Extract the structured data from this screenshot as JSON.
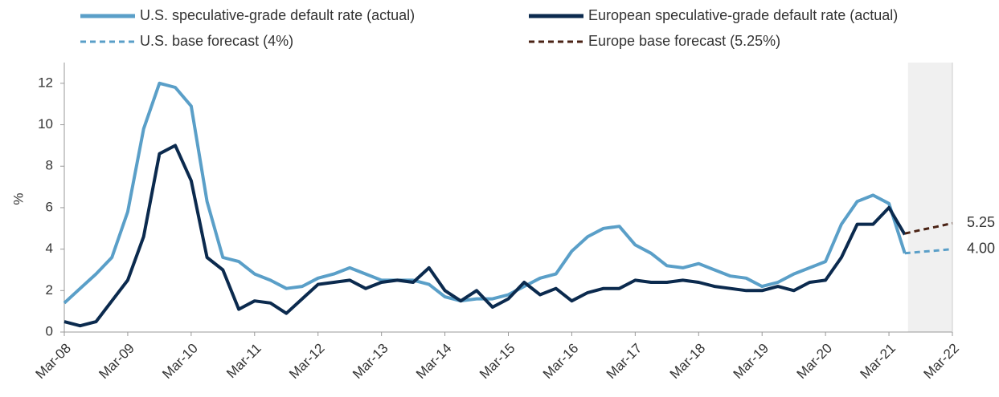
{
  "chart_data": {
    "type": "line",
    "y_label": "%",
    "categories": [
      "Mar-08",
      null,
      null,
      null,
      "Mar-09",
      null,
      null,
      null,
      "Mar-10",
      null,
      null,
      null,
      "Mar-11",
      null,
      null,
      null,
      "Mar-12",
      null,
      null,
      null,
      "Mar-13",
      null,
      null,
      null,
      "Mar-14",
      null,
      null,
      null,
      "Mar-15",
      null,
      null,
      null,
      "Mar-16",
      null,
      null,
      null,
      "Mar-17",
      null,
      null,
      null,
      "Mar-18",
      null,
      null,
      null,
      "Mar-19",
      null,
      null,
      null,
      "Mar-20",
      null,
      null,
      null,
      "Mar-21",
      null,
      null,
      null,
      "Mar-22"
    ],
    "ylim": [
      0,
      13
    ],
    "yticks": [
      0,
      2,
      4,
      6,
      8,
      10,
      12
    ],
    "series": [
      {
        "name": "U.S. speculative-grade default rate (actual)",
        "color": "#5a9fc8",
        "dash": false,
        "values": [
          1.4,
          2.1,
          2.8,
          3.6,
          5.8,
          9.8,
          12.0,
          11.8,
          10.9,
          6.3,
          3.6,
          3.4,
          2.8,
          2.5,
          2.1,
          2.2,
          2.6,
          2.8,
          3.1,
          2.8,
          2.5,
          2.5,
          2.5,
          2.3,
          1.7,
          1.5,
          1.6,
          1.6,
          1.8,
          2.2,
          2.6,
          2.8,
          3.9,
          4.6,
          5.0,
          5.1,
          4.2,
          3.8,
          3.2,
          3.1,
          3.3,
          3.0,
          2.7,
          2.6,
          2.2,
          2.4,
          2.8,
          3.1,
          3.4,
          5.2,
          6.3,
          6.6,
          6.2,
          3.8,
          null,
          null,
          null
        ]
      },
      {
        "name": "European speculative-grade default rate (actual)",
        "color": "#0b2a4e",
        "dash": false,
        "values": [
          0.5,
          0.3,
          0.5,
          1.5,
          2.5,
          4.6,
          8.6,
          9.0,
          7.3,
          3.6,
          3.0,
          1.1,
          1.5,
          1.4,
          0.9,
          1.6,
          2.3,
          2.4,
          2.5,
          2.1,
          2.4,
          2.5,
          2.4,
          3.1,
          2.0,
          1.5,
          2.0,
          1.2,
          1.6,
          2.4,
          1.8,
          2.1,
          1.5,
          1.9,
          2.1,
          2.1,
          2.5,
          2.4,
          2.4,
          2.5,
          2.4,
          2.2,
          2.1,
          2.0,
          2.0,
          2.2,
          2.0,
          2.4,
          2.5,
          3.6,
          5.2,
          5.2,
          6.0,
          4.7,
          null,
          null,
          null
        ]
      },
      {
        "name": "U.S. base forecast (4%)",
        "color": "#5a9fc8",
        "dash": true,
        "values": [
          null,
          null,
          null,
          null,
          null,
          null,
          null,
          null,
          null,
          null,
          null,
          null,
          null,
          null,
          null,
          null,
          null,
          null,
          null,
          null,
          null,
          null,
          null,
          null,
          null,
          null,
          null,
          null,
          null,
          null,
          null,
          null,
          null,
          null,
          null,
          null,
          null,
          null,
          null,
          null,
          null,
          null,
          null,
          null,
          null,
          null,
          null,
          null,
          null,
          null,
          null,
          null,
          null,
          3.8,
          3.87,
          3.93,
          4.0
        ],
        "value_labels": [
          null,
          null,
          null,
          null,
          null,
          null,
          null,
          null,
          null,
          null,
          null,
          null,
          null,
          null,
          null,
          null,
          null,
          null,
          null,
          null,
          null,
          null,
          null,
          null,
          null,
          null,
          null,
          null,
          null,
          null,
          null,
          null,
          null,
          null,
          null,
          null,
          null,
          null,
          null,
          null,
          null,
          null,
          null,
          null,
          null,
          null,
          null,
          null,
          null,
          null,
          null,
          null,
          null,
          null,
          null,
          null,
          "4.00"
        ]
      },
      {
        "name": "Europe base forecast (5.25%)",
        "color": "#4a2214",
        "dash": true,
        "values": [
          null,
          null,
          null,
          null,
          null,
          null,
          null,
          null,
          null,
          null,
          null,
          null,
          null,
          null,
          null,
          null,
          null,
          null,
          null,
          null,
          null,
          null,
          null,
          null,
          null,
          null,
          null,
          null,
          null,
          null,
          null,
          null,
          null,
          null,
          null,
          null,
          null,
          null,
          null,
          null,
          null,
          null,
          null,
          null,
          null,
          null,
          null,
          null,
          null,
          null,
          null,
          null,
          null,
          4.75,
          4.92,
          5.08,
          5.25
        ],
        "value_labels": [
          null,
          null,
          null,
          null,
          null,
          null,
          null,
          null,
          null,
          null,
          null,
          null,
          null,
          null,
          null,
          null,
          null,
          null,
          null,
          null,
          null,
          null,
          null,
          null,
          null,
          null,
          null,
          null,
          null,
          null,
          null,
          null,
          null,
          null,
          null,
          null,
          null,
          null,
          null,
          null,
          null,
          null,
          null,
          null,
          null,
          null,
          null,
          null,
          null,
          null,
          null,
          null,
          null,
          null,
          null,
          null,
          "5.25"
        ]
      }
    ]
  }
}
